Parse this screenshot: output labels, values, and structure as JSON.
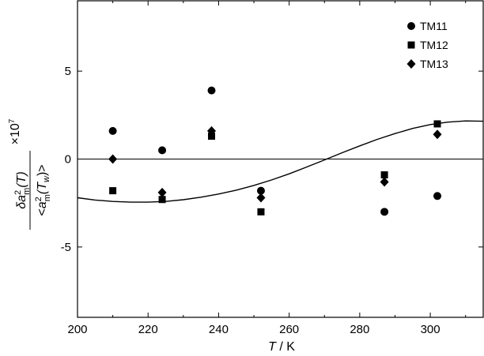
{
  "chart_data": {
    "type": "scatter",
    "x": [
      210,
      224,
      238,
      252,
      287,
      302
    ],
    "series": [
      {
        "name": "TM11",
        "marker": "circle",
        "values": [
          1.6,
          0.5,
          3.9,
          -1.8,
          -3.0,
          -2.1
        ]
      },
      {
        "name": "TM12",
        "marker": "square",
        "values": [
          -1.8,
          -2.3,
          1.3,
          -3.0,
          -0.9,
          2.0
        ]
      },
      {
        "name": "TM13",
        "marker": "diamond",
        "values": [
          0.0,
          -1.9,
          1.6,
          -2.2,
          -1.3,
          1.4
        ]
      }
    ],
    "fit_curve": {
      "x": [
        200,
        205,
        210,
        215,
        220,
        225,
        230,
        235,
        240,
        245,
        250,
        255,
        260,
        265,
        270,
        275,
        280,
        285,
        290,
        295,
        300,
        305,
        310,
        315
      ],
      "y": [
        -2.2,
        -2.33,
        -2.41,
        -2.45,
        -2.45,
        -2.41,
        -2.31,
        -2.17,
        -1.99,
        -1.77,
        -1.5,
        -1.19,
        -0.84,
        -0.45,
        -0.05,
        0.36,
        0.75,
        1.12,
        1.45,
        1.74,
        1.96,
        2.1,
        2.17,
        2.15
      ]
    },
    "reference_line_y": 0,
    "xlabel_var": "T",
    "xlabel_unit": " / K",
    "ylabel": {
      "num_delta": "δ",
      "num_a": "a",
      "num_sup": "2",
      "num_sub": "m",
      "num_arg": "(T)",
      "den_open": "<",
      "den_a": "a",
      "den_sup": "2",
      "den_sub": "m",
      "den_arg": "(T",
      "den_arg_sub": "w",
      "den_close": ")>",
      "scale_x": "×",
      "scale_base": "10",
      "scale_exp": "7"
    },
    "xlim": [
      200,
      315
    ],
    "ylim": [
      -9,
      9
    ],
    "xticks": [
      200,
      220,
      240,
      260,
      280,
      300
    ],
    "yticks": [
      -5,
      0,
      5
    ],
    "grid": false,
    "legend_position": "top-right"
  }
}
